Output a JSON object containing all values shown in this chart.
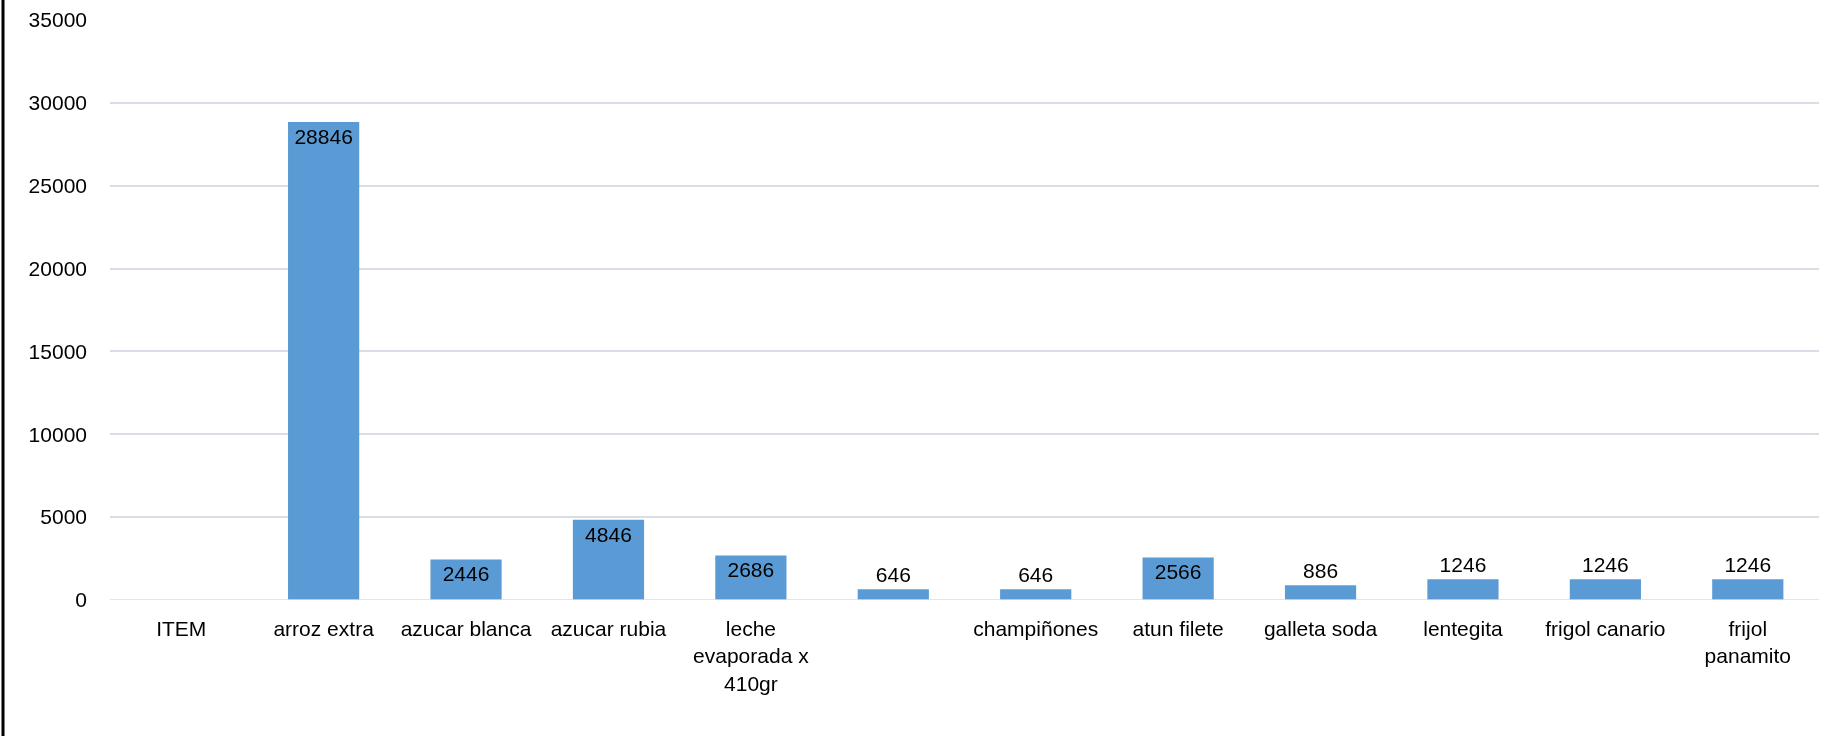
{
  "chart_data": {
    "type": "bar",
    "categories": [
      "ITEM",
      "arroz extra",
      "azucar blanca",
      "azucar rubia",
      "leche evaporada x 410gr",
      null,
      "champiñones",
      "atun filete",
      "galleta soda",
      "lentegita",
      "frigol canario",
      "frijol panamito"
    ],
    "values": [
      null,
      28846,
      2446,
      4846,
      2686,
      646,
      646,
      2566,
      886,
      1246,
      1246,
      1246
    ],
    "color": "#5b9bd5",
    "ylim": [
      0,
      35000
    ],
    "yticks": [
      0,
      5000,
      10000,
      15000,
      20000,
      25000,
      30000,
      35000
    ],
    "grid": "y",
    "data_labels": true
  }
}
